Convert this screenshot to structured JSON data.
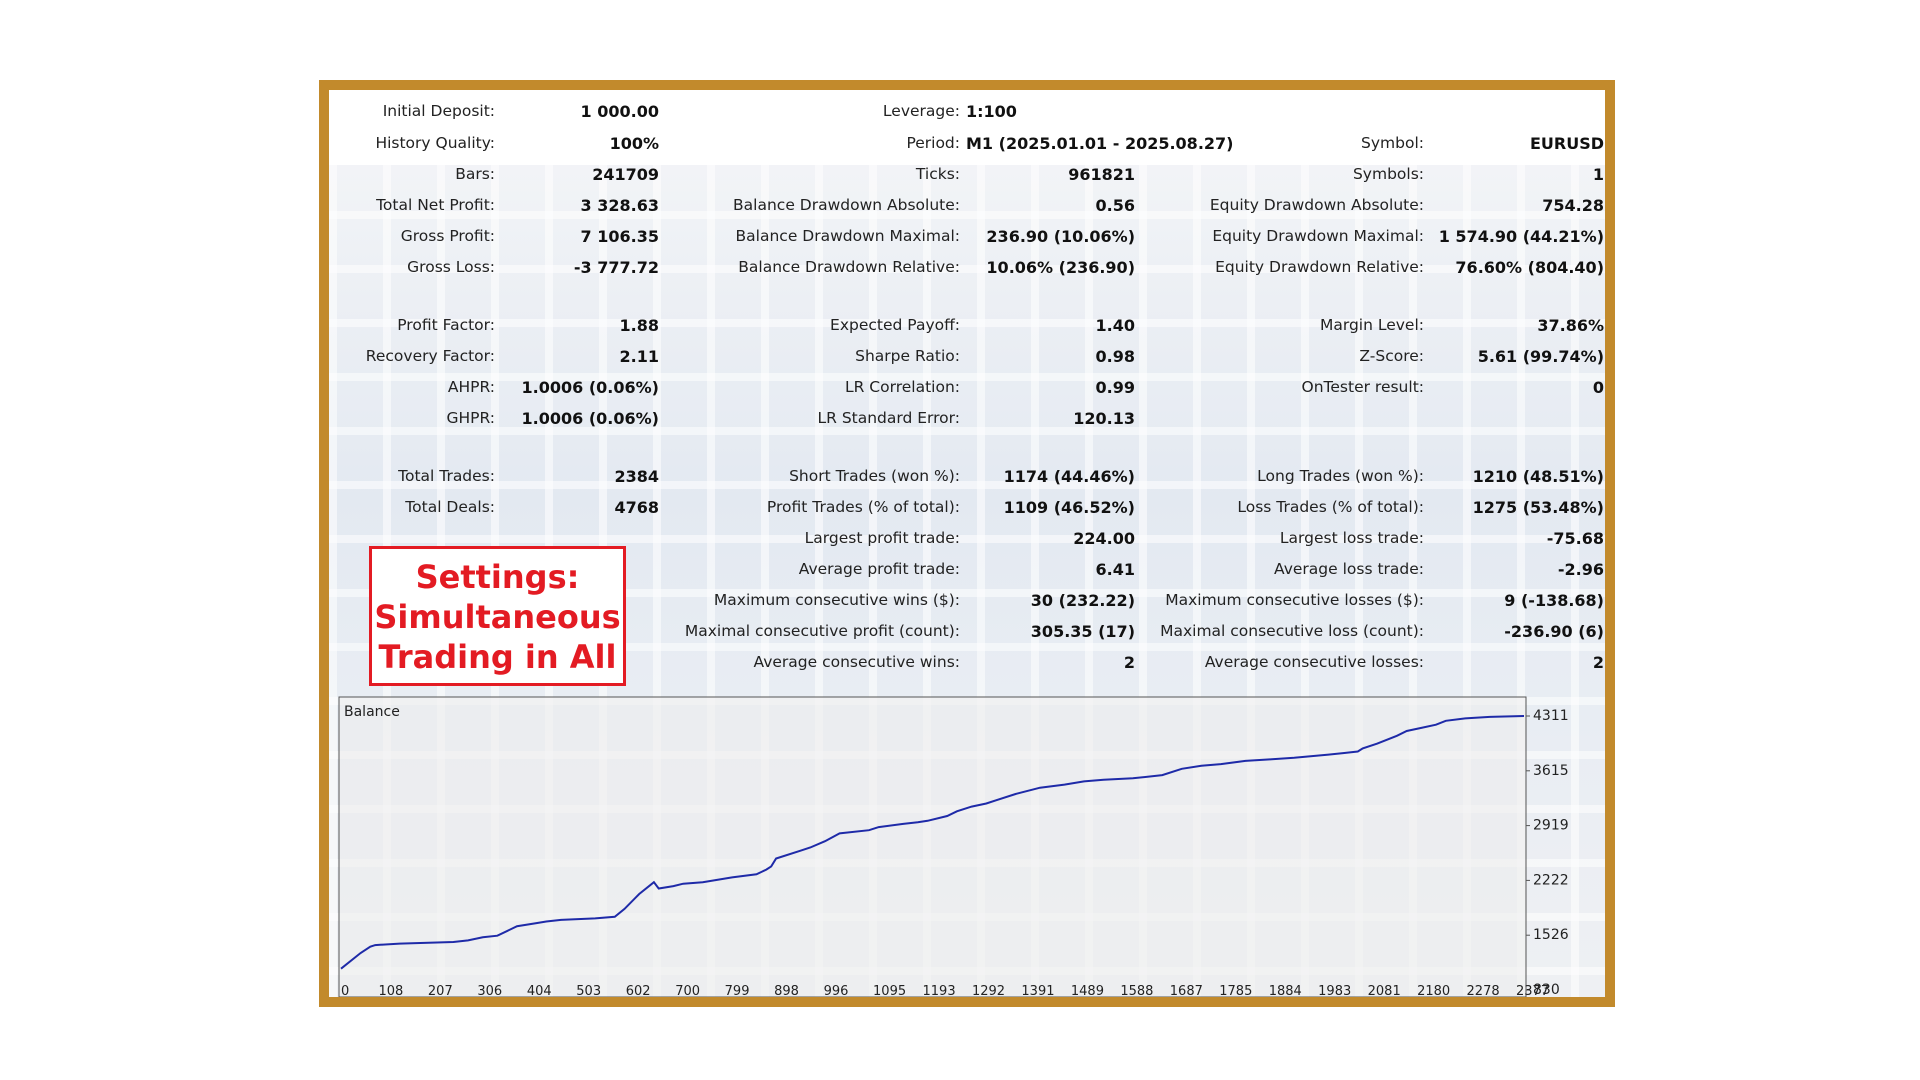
{
  "summary": {
    "initial_deposit": {
      "label": "Initial Deposit:",
      "value": "1 000.00"
    },
    "leverage": {
      "label": "Leverage:",
      "value": "1:100"
    },
    "history_quality": {
      "label": "History Quality:",
      "value": "100%"
    },
    "period": {
      "label": "Period:",
      "value": "M1 (2025.01.01 - 2025.08.27)"
    },
    "symbol": {
      "label": "Symbol:",
      "value": "EURUSD"
    }
  },
  "rows": [
    {
      "c1": {
        "label": "Bars:",
        "value": "241709"
      },
      "c2": {
        "label": "Ticks:",
        "value": "961821"
      },
      "c3": {
        "label": "Symbols:",
        "value": "1"
      }
    },
    {
      "c1": {
        "label": "Total Net Profit:",
        "value": "3 328.63"
      },
      "c2": {
        "label": "Balance Drawdown Absolute:",
        "value": "0.56"
      },
      "c3": {
        "label": "Equity Drawdown Absolute:",
        "value": "754.28"
      }
    },
    {
      "c1": {
        "label": "Gross Profit:",
        "value": "7 106.35"
      },
      "c2": {
        "label": "Balance Drawdown Maximal:",
        "value": "236.90 (10.06%)"
      },
      "c3": {
        "label": "Equity Drawdown Maximal:",
        "value": "1 574.90 (44.21%)"
      }
    },
    {
      "c1": {
        "label": "Gross Loss:",
        "value": "-3 777.72"
      },
      "c2": {
        "label": "Balance Drawdown Relative:",
        "value": "10.06% (236.90)"
      },
      "c3": {
        "label": "Equity Drawdown Relative:",
        "value": "76.60% (804.40)"
      }
    },
    {
      "c1": {
        "label": "Profit Factor:",
        "value": "1.88"
      },
      "c2": {
        "label": "Expected Payoff:",
        "value": "1.40"
      },
      "c3": {
        "label": "Margin Level:",
        "value": "37.86%"
      }
    },
    {
      "c1": {
        "label": "Recovery Factor:",
        "value": "2.11"
      },
      "c2": {
        "label": "Sharpe Ratio:",
        "value": "0.98"
      },
      "c3": {
        "label": "Z-Score:",
        "value": "5.61 (99.74%)"
      }
    },
    {
      "c1": {
        "label": "AHPR:",
        "value": "1.0006 (0.06%)"
      },
      "c2": {
        "label": "LR Correlation:",
        "value": "0.99"
      },
      "c3": {
        "label": "OnTester result:",
        "value": "0"
      }
    },
    {
      "c1": {
        "label": "GHPR:",
        "value": "1.0006 (0.06%)"
      },
      "c2": {
        "label": "LR Standard Error:",
        "value": "120.13"
      },
      "c3": null
    },
    {
      "c1": {
        "label": "Total Trades:",
        "value": "2384"
      },
      "c2": {
        "label": "Short Trades (won %):",
        "value": "1174 (44.46%)"
      },
      "c3": {
        "label": "Long Trades (won %):",
        "value": "1210 (48.51%)"
      }
    },
    {
      "c1": {
        "label": "Total Deals:",
        "value": "4768"
      },
      "c2": {
        "label": "Profit Trades (% of total):",
        "value": "1109 (46.52%)"
      },
      "c3": {
        "label": "Loss Trades (% of total):",
        "value": "1275 (53.48%)"
      }
    },
    {
      "c1": null,
      "c2": {
        "label": "Largest profit trade:",
        "value": "224.00"
      },
      "c3": {
        "label": "Largest loss trade:",
        "value": "-75.68"
      }
    },
    {
      "c1": null,
      "c2": {
        "label": "Average profit trade:",
        "value": "6.41"
      },
      "c3": {
        "label": "Average loss trade:",
        "value": "-2.96"
      }
    },
    {
      "c1": null,
      "c2": {
        "label": "Maximum consecutive wins ($):",
        "value": "30 (232.22)"
      },
      "c3": {
        "label": "Maximum consecutive losses ($):",
        "value": "9 (-138.68)"
      }
    },
    {
      "c1": null,
      "c2": {
        "label": "Maximal consecutive profit (count):",
        "value": "305.35 (17)"
      },
      "c3": {
        "label": "Maximal consecutive loss (count):",
        "value": "-236.90 (6)"
      }
    },
    {
      "c1": null,
      "c2": {
        "label": "Average consecutive wins:",
        "value": "2"
      },
      "c3": {
        "label": "Average consecutive losses:",
        "value": "2"
      }
    }
  ],
  "settings_note": {
    "line1": "Settings:",
    "line2": "Simultaneous",
    "line3": "Trading in All"
  },
  "chart_data": {
    "type": "line",
    "title": "Balance",
    "x_ticks": [
      "0",
      "108",
      "207",
      "306",
      "404",
      "503",
      "602",
      "700",
      "799",
      "898",
      "996",
      "1095",
      "1193",
      "1292",
      "1391",
      "1489",
      "1588",
      "1687",
      "1785",
      "1884",
      "1983",
      "2081",
      "2180",
      "2278",
      "2377"
    ],
    "y_ticks": [
      "4311",
      "3615",
      "2919",
      "2222",
      "1526",
      "830"
    ],
    "xlim": [
      0,
      2420
    ],
    "ylim": [
      830,
      4311
    ],
    "series": [
      {
        "color": "#1e2aa8",
        "x": [
          0,
          40,
          60,
          70,
          120,
          230,
          260,
          290,
          320,
          360,
          400,
          420,
          450,
          520,
          560,
          580,
          610,
          640,
          650,
          680,
          700,
          740,
          800,
          850,
          870,
          880,
          890,
          940,
          960,
          990,
          1020,
          1080,
          1100,
          1150,
          1180,
          1200,
          1240,
          1260,
          1290,
          1320,
          1340,
          1380,
          1430,
          1480,
          1520,
          1560,
          1620,
          1680,
          1720,
          1760,
          1800,
          1850,
          1900,
          1950,
          2020,
          2050,
          2080,
          2090,
          2120,
          2160,
          2180,
          2210,
          2240,
          2260,
          2300,
          2350,
          2420
        ],
        "y": [
          1100,
          1300,
          1380,
          1400,
          1420,
          1440,
          1460,
          1500,
          1520,
          1640,
          1680,
          1700,
          1720,
          1740,
          1760,
          1860,
          2050,
          2200,
          2120,
          2150,
          2180,
          2200,
          2260,
          2300,
          2360,
          2400,
          2500,
          2600,
          2640,
          2720,
          2820,
          2860,
          2900,
          2940,
          2960,
          2980,
          3040,
          3100,
          3160,
          3200,
          3240,
          3320,
          3400,
          3440,
          3480,
          3500,
          3520,
          3560,
          3640,
          3680,
          3700,
          3740,
          3760,
          3780,
          3820,
          3840,
          3860,
          3900,
          3960,
          4060,
          4120,
          4160,
          4200,
          4250,
          4280,
          4300,
          4311
        ]
      }
    ]
  }
}
